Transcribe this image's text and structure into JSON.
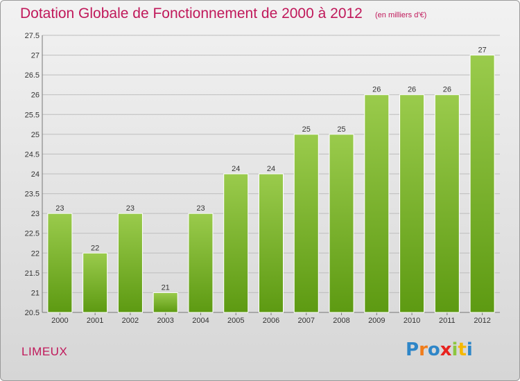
{
  "header": {
    "title": "Dotation Globale de Fonctionnement de 2000 à 2012",
    "subtitle": "(en milliers d'€)"
  },
  "footer": {
    "place": "LIMEUX",
    "logo_letters": [
      "P",
      "r",
      "o",
      "x",
      "i",
      "t",
      "i"
    ],
    "logo_colors": [
      "#2e86c8",
      "#f07c1a",
      "#2e86c8",
      "#e8221e",
      "#8cc63f",
      "#f5b800",
      "#2e86c8"
    ]
  },
  "colors": {
    "bar_top": "#9acb4c",
    "bar_bottom": "#5d9a12",
    "grid": "#bdbdbd",
    "accent": "#c0185a"
  },
  "chart_data": {
    "type": "bar",
    "title": "Dotation Globale de Fonctionnement de 2000 à 2012",
    "subtitle": "(en milliers d'€)",
    "categories": [
      "2000",
      "2001",
      "2002",
      "2003",
      "2004",
      "2005",
      "2006",
      "2007",
      "2008",
      "2009",
      "2010",
      "2011",
      "2012"
    ],
    "values": [
      23,
      22,
      23,
      21,
      23,
      24,
      24,
      25,
      25,
      26,
      26,
      26,
      27
    ],
    "data_labels": [
      "23",
      "22",
      "23",
      "21",
      "23",
      "24",
      "24",
      "25",
      "25",
      "26",
      "26",
      "26",
      "27"
    ],
    "ylim": [
      20.5,
      27.5
    ],
    "yticks": [
      "20.5",
      "21",
      "21.5",
      "22",
      "22.5",
      "23",
      "23.5",
      "24",
      "24.5",
      "25",
      "25.5",
      "26",
      "26.5",
      "27",
      "27.5"
    ],
    "grid": true,
    "xlabel": "",
    "ylabel": ""
  }
}
